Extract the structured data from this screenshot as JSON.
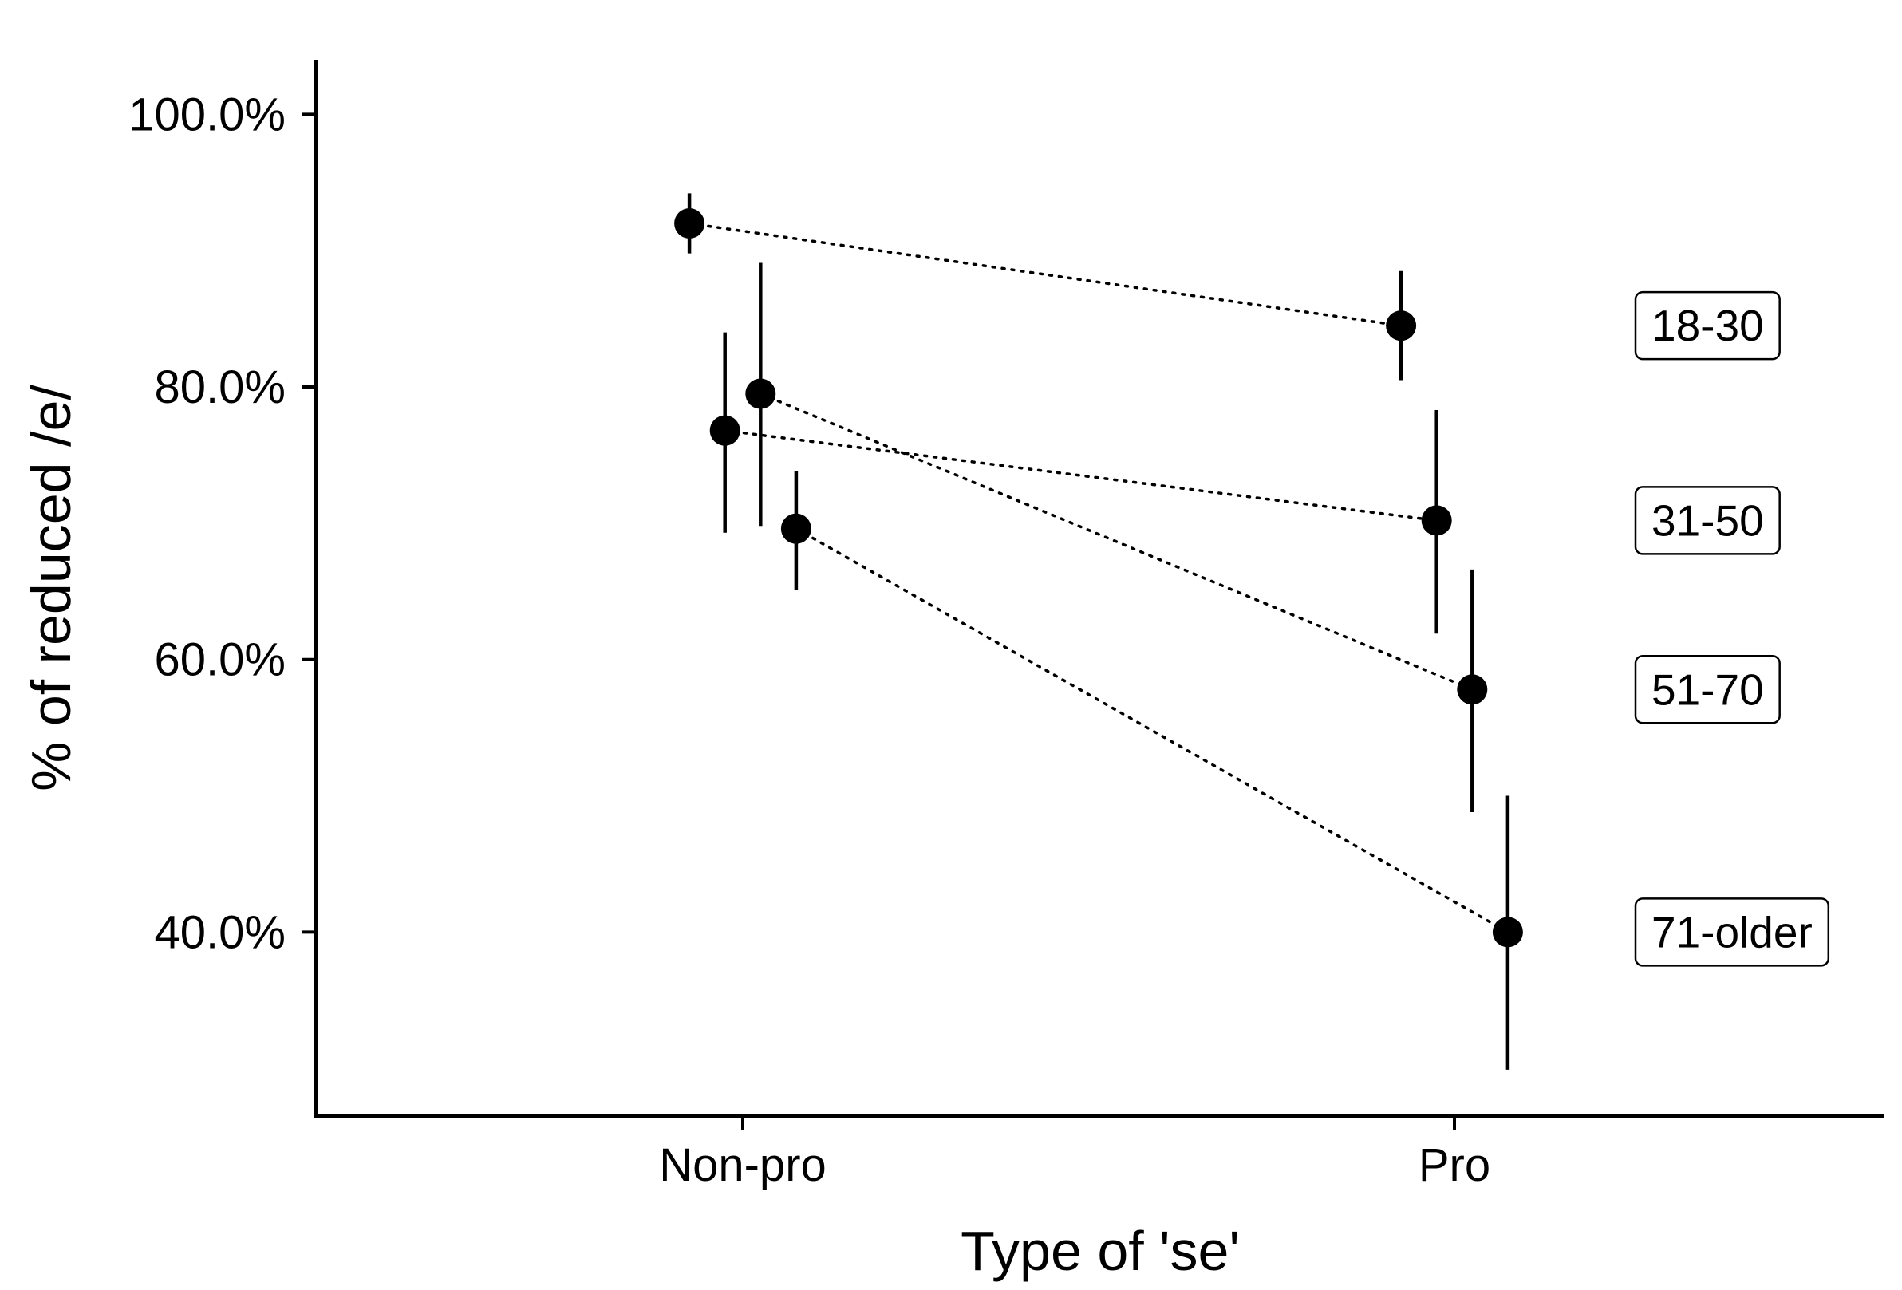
{
  "chart_data": {
    "type": "scatter",
    "xlabel": "Type of 'se'",
    "ylabel": "% of reduced /e/",
    "categories": [
      "Non-pro",
      "Pro"
    ],
    "ylim": [
      26.5,
      104
    ],
    "yticks": [
      40,
      60,
      80,
      100
    ],
    "ytick_labels": [
      "40.0%",
      "60.0%",
      "80.0%",
      "100.0%"
    ],
    "grid": false,
    "legend": "none",
    "series": [
      {
        "name": "18-30",
        "values": [
          92.0,
          84.5
        ],
        "lower": [
          89.8,
          80.5
        ],
        "upper": [
          94.2,
          88.5
        ]
      },
      {
        "name": "31-50",
        "values": [
          76.8,
          70.2
        ],
        "lower": [
          69.3,
          61.9
        ],
        "upper": [
          84.0,
          78.3
        ]
      },
      {
        "name": "51-70",
        "values": [
          79.5,
          57.8
        ],
        "lower": [
          69.8,
          48.8
        ],
        "upper": [
          89.1,
          66.6
        ]
      },
      {
        "name": "71-older",
        "values": [
          69.6,
          40.0
        ],
        "lower": [
          65.1,
          29.9
        ],
        "upper": [
          73.8,
          50.0
        ]
      }
    ]
  }
}
